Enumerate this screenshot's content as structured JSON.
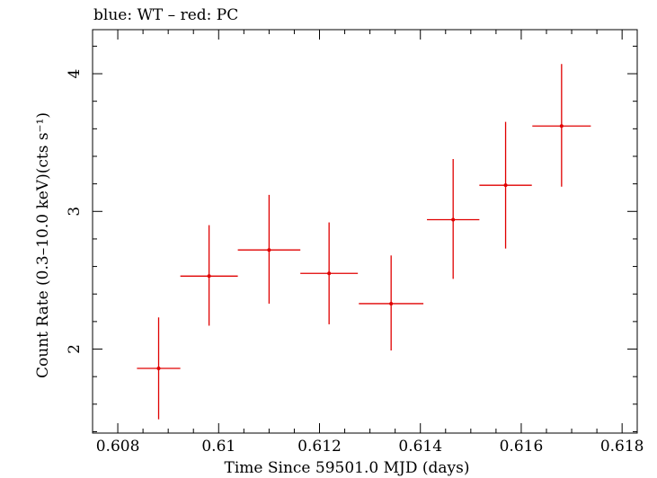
{
  "chart_data": {
    "type": "scatter",
    "title": "blue: WT – red: PC",
    "xlabel": "Time Since 59501.0 MJD (days)",
    "ylabel": "Count Rate (0.3–10.0 keV)(cts s⁻¹)",
    "xlim": [
      0.6075,
      0.6183
    ],
    "ylim": [
      1.39,
      4.32
    ],
    "x_ticks": [
      0.608,
      0.61,
      0.612,
      0.614,
      0.616,
      0.618
    ],
    "x_tick_labels": [
      "0.608",
      "0.61",
      "0.612",
      "0.614",
      "0.616",
      "0.618"
    ],
    "y_ticks": [
      2,
      3,
      4
    ],
    "y_tick_labels": [
      "2",
      "3",
      "4"
    ],
    "grid": false,
    "series": [
      {
        "name": "PC",
        "color": "#e00000",
        "points": [
          {
            "x": 0.60881,
            "xerr": 0.00043,
            "y": 1.86,
            "yerr_low": 0.37,
            "yerr_high": 0.37
          },
          {
            "x": 0.60981,
            "xerr": 0.00057,
            "y": 2.53,
            "yerr_low": 0.36,
            "yerr_high": 0.37
          },
          {
            "x": 0.611,
            "xerr": 0.00062,
            "y": 2.72,
            "yerr_low": 0.39,
            "yerr_high": 0.4
          },
          {
            "x": 0.61219,
            "xerr": 0.00057,
            "y": 2.55,
            "yerr_low": 0.37,
            "yerr_high": 0.37
          },
          {
            "x": 0.61342,
            "xerr": 0.00064,
            "y": 2.33,
            "yerr_low": 0.34,
            "yerr_high": 0.35
          },
          {
            "x": 0.61465,
            "xerr": 0.00052,
            "y": 2.94,
            "yerr_low": 0.43,
            "yerr_high": 0.44
          },
          {
            "x": 0.61569,
            "xerr": 0.00052,
            "y": 3.19,
            "yerr_low": 0.46,
            "yerr_high": 0.46
          },
          {
            "x": 0.6168,
            "xerr": 0.00058,
            "y": 3.62,
            "yerr_low": 0.44,
            "yerr_high": 0.45
          }
        ]
      }
    ]
  }
}
